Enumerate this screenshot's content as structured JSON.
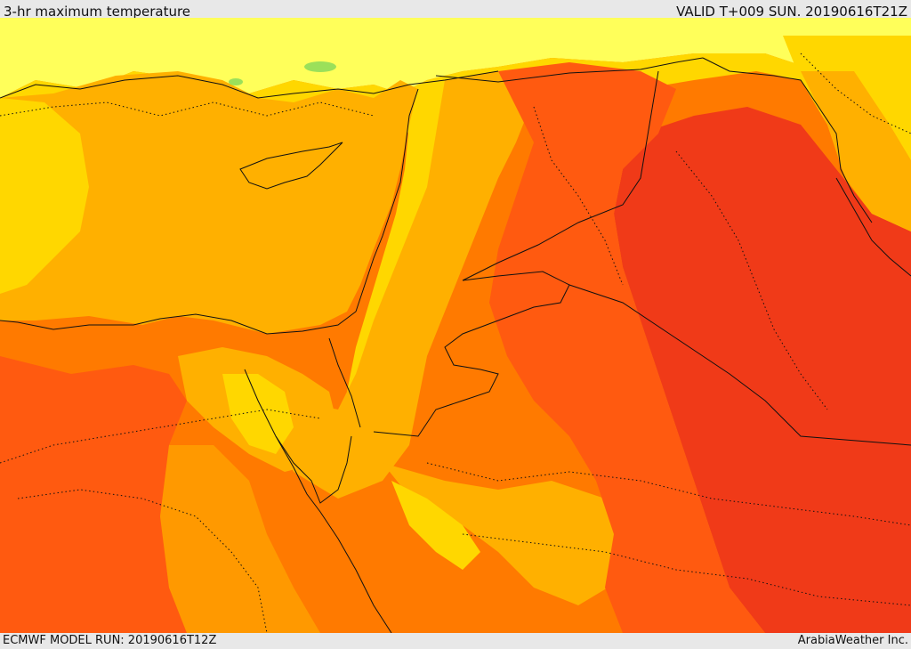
{
  "header": {
    "field_title": "3-hr maximum temperature",
    "valid_time": "VALID T+009 SUN. 20190616T21Z"
  },
  "footer": {
    "model_run": "ECMWF MODEL RUN: 20190616T12Z",
    "credit": "ArabiaWeather Inc."
  },
  "palette": {
    "pale_yellow": "#ffff5a",
    "yellow": "#ffd700",
    "gold": "#ffb000",
    "light_orange": "#ff9900",
    "orange": "#ff7a00",
    "dark_orange": "#ff5a10",
    "red_orange": "#f03a18",
    "green_hint": "#9be05a",
    "border": "#111111"
  }
}
